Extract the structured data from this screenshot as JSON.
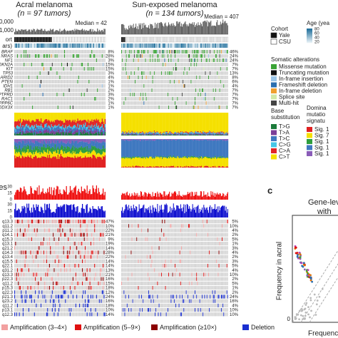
{
  "header": {
    "acral_title": "Acral melanoma",
    "acral_n": "(n = 97 tumors)",
    "sun_title": "Sun-exposed melanoma",
    "sun_n": "(n = 134 tumors)",
    "acral_median": "Median = 42",
    "sun_median": "Median = 407",
    "burden_ticks": [
      "00,000",
      "1,000"
    ]
  },
  "left_labels": {
    "cohort": "ort",
    "age": "ars)",
    "cnv": "es",
    "cnv_ticks": [
      "30",
      "15",
      "0",
      "30",
      "15",
      "0"
    ]
  },
  "mutations": {
    "genes": [
      "BRAF",
      "NRAS",
      "NF1",
      "CDKN2A",
      "KIT",
      "TP53",
      "ARID2",
      "PTEN",
      "IDH1",
      "RB1",
      "PTPRD",
      "RAC1",
      "PPP6C",
      "DDX3X"
    ],
    "acral_pct": [
      "8%",
      "28%",
      "3%",
      "15%",
      "15%",
      "3%",
      "4%",
      "1%",
      "1%",
      "2%",
      "3%",
      "2%",
      "1%",
      "1%"
    ],
    "sun_pct": [
      "46%",
      "24%",
      "24%",
      "7%",
      "7%",
      "13%",
      "8%",
      "6%",
      "4%",
      "7%",
      "7%",
      "7%",
      "7%",
      "7%"
    ]
  },
  "cnv": {
    "regions": [
      "q13.3",
      "q11.2",
      "p11.2",
      "q14.1",
      "q15.3",
      "q13.1",
      "q21.2",
      "q14.3",
      "q13.4",
      "q15.5",
      "q22.1",
      "q31.2",
      "q13.3",
      "p22.3",
      "q11.2",
      "p15.3",
      "q22.3",
      "p21.3",
      "q23.2",
      "q11.2",
      "p13.1",
      "q12.3"
    ],
    "acral_pct": [
      "47%",
      "10%",
      "22%",
      "21%",
      "9%",
      "19%",
      "14%",
      "28%",
      "22%",
      "14%",
      "14%",
      "13%",
      "21%",
      "16%",
      "15%",
      "18%",
      "12%",
      "24%",
      "16%",
      "18%",
      "10%",
      "14%"
    ],
    "sun_pct": [
      "5%",
      "10%",
      "4%",
      "2%",
      "5%",
      "1%",
      "3%",
      "4%",
      "2%",
      "3%",
      "5%",
      "4%",
      "10%",
      "2%",
      "5%",
      "1%",
      "2%",
      "24%",
      "16%",
      "4%",
      "10%",
      "10%"
    ]
  },
  "legend": {
    "cohort_title": "Cohort",
    "cohort_items": [
      "Yale",
      "CSU"
    ],
    "age_title": "Age (yea",
    "age_ticks": [
      "80",
      "60",
      "40",
      "20"
    ],
    "somatic_title": "Somatic alterations",
    "somatic_items": [
      "Missense mutation",
      "Truncating mutation",
      "In-frame insertion",
      "Frameshift deletion",
      "In-frame deletion",
      "Splice site",
      "Multi-hit"
    ],
    "base_title": [
      "Base",
      "substitution"
    ],
    "base_items": [
      "T>G",
      "T>A",
      "T>C",
      "C>G",
      "C>A",
      "C>T"
    ],
    "sig_title": [
      "Domina",
      "mutatio",
      "signatu"
    ],
    "sig_items": [
      "Sig. 1",
      "Sig. 7",
      "Sig. 1",
      "Sig. 1",
      "Sig. 1"
    ],
    "cnv_items": [
      "Amplification (3–4×)",
      "Amplification (5–9×)",
      "Amplification (≥10×)",
      "Deletion"
    ]
  },
  "panel_c": {
    "letter": "c",
    "title": [
      "Gene-lev",
      "with"
    ],
    "y_label": "Frequency in acral",
    "x_label": "Frequenc",
    "tick": "0"
  }
}
